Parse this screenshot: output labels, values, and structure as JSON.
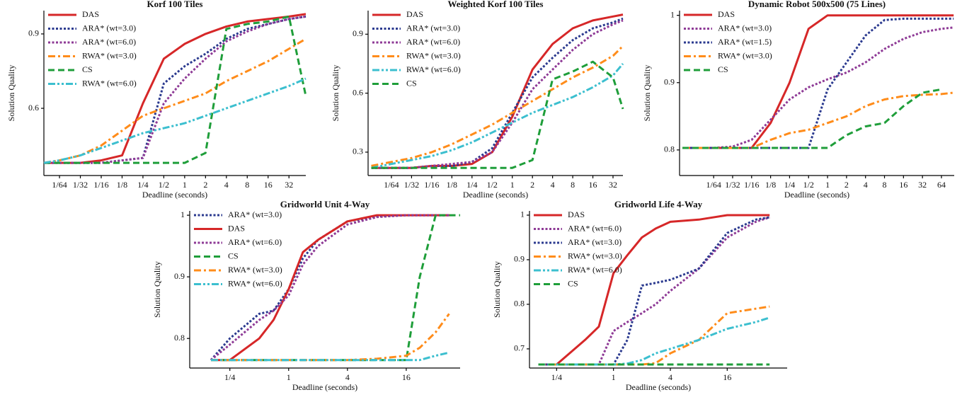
{
  "chart_data": [
    {
      "type": "line",
      "title": "Korf 100 Tiles",
      "x_label": "Deadline (seconds)",
      "y_label": "Solution Quality",
      "x_scale": "log",
      "legend": "upper left",
      "x": [
        0.0093,
        0.015625,
        0.03125,
        0.0625,
        0.125,
        0.25,
        0.5,
        1,
        2,
        4,
        8,
        16,
        32,
        56
      ],
      "xlim": [
        0.0093,
        56
      ],
      "ylim": [
        0.329,
        0.994
      ],
      "xticks": [
        {
          "value": 0.015625,
          "label": "1/64"
        },
        {
          "value": 0.03125,
          "label": "1/32"
        },
        {
          "value": 0.0625,
          "label": "1/16"
        },
        {
          "value": 0.125,
          "label": "1/8"
        },
        {
          "value": 0.25,
          "label": "1/4"
        },
        {
          "value": 0.5,
          "label": "1/2"
        },
        1,
        2,
        4,
        8,
        16,
        32
      ],
      "yticks": [
        0.6,
        0.9
      ],
      "series": [
        {
          "name": "DAS",
          "color": "#d62728",
          "style": "solid",
          "values": [
            0.38,
            0.38,
            0.38,
            0.39,
            0.41,
            0.62,
            0.8,
            0.86,
            0.9,
            0.93,
            0.95,
            0.96,
            0.97,
            0.98
          ]
        },
        {
          "name": "ARA* (wt=3.0)",
          "color": "#2b3a8f",
          "style": "dotted",
          "values": [
            0.38,
            0.38,
            0.38,
            0.38,
            0.39,
            0.4,
            0.7,
            0.77,
            0.82,
            0.88,
            0.92,
            0.94,
            0.96,
            0.97
          ]
        },
        {
          "name": "ARA* (wt=6.0)",
          "color": "#8e3a96",
          "style": "dotted",
          "values": [
            0.38,
            0.38,
            0.38,
            0.38,
            0.39,
            0.4,
            0.62,
            0.72,
            0.8,
            0.87,
            0.91,
            0.94,
            0.96,
            0.97
          ]
        },
        {
          "name": "RWA* (wt=3.0)",
          "color": "#ff8c1a",
          "style": "dashdot",
          "values": [
            0.38,
            0.39,
            0.41,
            0.45,
            0.51,
            0.57,
            0.6,
            0.63,
            0.66,
            0.71,
            0.75,
            0.79,
            0.84,
            0.88
          ]
        },
        {
          "name": "CS",
          "color": "#1f9e3a",
          "style": "dashed",
          "values": [
            0.38,
            0.38,
            0.38,
            0.38,
            0.38,
            0.38,
            0.38,
            0.38,
            0.42,
            0.92,
            0.94,
            0.95,
            0.97,
            0.65
          ]
        },
        {
          "name": "RWA* (wt=6.0)",
          "color": "#3cbfcf",
          "style": "dashdotdot",
          "values": [
            0.38,
            0.39,
            0.41,
            0.44,
            0.47,
            0.5,
            0.52,
            0.54,
            0.57,
            0.6,
            0.63,
            0.66,
            0.69,
            0.72
          ]
        }
      ]
    },
    {
      "type": "line",
      "title": "Weighted Korf 100 Tiles",
      "x_label": "Deadline (seconds)",
      "y_label": "Solution Quality",
      "x_scale": "log",
      "legend": "upper left",
      "x": [
        0.0078125,
        0.015625,
        0.03125,
        0.0625,
        0.125,
        0.25,
        0.5,
        1,
        2,
        4,
        8,
        16,
        32,
        45
      ],
      "xlim": [
        0.007,
        45
      ],
      "ylim": [
        0.181,
        1.02
      ],
      "xticks": [
        {
          "value": 0.015625,
          "label": "1/64"
        },
        {
          "value": 0.03125,
          "label": "1/32"
        },
        {
          "value": 0.0625,
          "label": "1/16"
        },
        {
          "value": 0.125,
          "label": "1/8"
        },
        {
          "value": 0.25,
          "label": "1/4"
        },
        {
          "value": 0.5,
          "label": "1/2"
        },
        1,
        2,
        4,
        8,
        16,
        32
      ],
      "yticks": [
        0.3,
        0.6,
        0.9
      ],
      "series": [
        {
          "name": "DAS",
          "color": "#d62728",
          "style": "solid",
          "values": [
            0.22,
            0.22,
            0.22,
            0.23,
            0.23,
            0.24,
            0.3,
            0.48,
            0.72,
            0.85,
            0.93,
            0.97,
            0.99,
            1.0
          ]
        },
        {
          "name": "ARA* (wt=3.0)",
          "color": "#2b3a8f",
          "style": "dotted",
          "values": [
            0.22,
            0.22,
            0.22,
            0.23,
            0.23,
            0.25,
            0.32,
            0.5,
            0.68,
            0.78,
            0.87,
            0.93,
            0.96,
            0.98
          ]
        },
        {
          "name": "ARA* (wt=6.0)",
          "color": "#8e3a96",
          "style": "dotted",
          "values": [
            0.22,
            0.22,
            0.22,
            0.23,
            0.24,
            0.25,
            0.3,
            0.45,
            0.62,
            0.72,
            0.82,
            0.9,
            0.95,
            0.97
          ]
        },
        {
          "name": "RWA* (wt=3.0)",
          "color": "#ff8c1a",
          "style": "dashdot",
          "values": [
            0.23,
            0.25,
            0.27,
            0.3,
            0.34,
            0.39,
            0.44,
            0.5,
            0.56,
            0.62,
            0.68,
            0.73,
            0.79,
            0.84
          ]
        },
        {
          "name": "RWA* (wt=6.0)",
          "color": "#3cbfcf",
          "style": "dashdotdot",
          "values": [
            0.22,
            0.24,
            0.26,
            0.28,
            0.31,
            0.35,
            0.4,
            0.45,
            0.5,
            0.54,
            0.58,
            0.63,
            0.69,
            0.75
          ]
        },
        {
          "name": "CS",
          "color": "#1f9e3a",
          "style": "dashed",
          "values": [
            0.22,
            0.22,
            0.22,
            0.22,
            0.22,
            0.22,
            0.22,
            0.22,
            0.26,
            0.67,
            0.71,
            0.76,
            0.68,
            0.52
          ]
        }
      ]
    },
    {
      "type": "line",
      "title": "Dynamic Robot 500x500 (75 Lines)",
      "x_label": "Deadline (seconds)",
      "y_label": "Solution Quality",
      "x_scale": "log",
      "legend": "upper left",
      "x": [
        0.005,
        0.015625,
        0.03125,
        0.0625,
        0.125,
        0.25,
        0.5,
        1,
        2,
        4,
        8,
        16,
        32,
        64,
        100
      ],
      "xlim": [
        0.0045,
        102
      ],
      "ylim": [
        0.762,
        1.007
      ],
      "xticks": [
        {
          "value": 0.015625,
          "label": "1/64"
        },
        {
          "value": 0.03125,
          "label": "1/32"
        },
        {
          "value": 0.0625,
          "label": "1/16"
        },
        {
          "value": 0.125,
          "label": "1/8"
        },
        {
          "value": 0.25,
          "label": "1/4"
        },
        {
          "value": 0.5,
          "label": "1/2"
        },
        1,
        2,
        4,
        8,
        16,
        32,
        64
      ],
      "yticks": [
        0.8,
        0.9,
        1
      ],
      "series": [
        {
          "name": "DAS",
          "color": "#d62728",
          "style": "solid",
          "values": [
            0.803,
            0.803,
            0.803,
            0.803,
            0.84,
            0.9,
            0.98,
            1.0,
            1.0,
            1.0,
            1.0,
            1.0,
            1.0,
            1.0,
            1.0
          ]
        },
        {
          "name": "ARA* (wt=3.0)",
          "color": "#8e3a96",
          "style": "dotted",
          "values": [
            0.803,
            0.803,
            0.805,
            0.815,
            0.845,
            0.875,
            0.893,
            0.905,
            0.915,
            0.93,
            0.95,
            0.965,
            0.975,
            0.98,
            0.982
          ]
        },
        {
          "name": "ARA* (wt=1.5)",
          "color": "#2b3a8f",
          "style": "dotted",
          "values": [
            0.803,
            0.803,
            0.803,
            0.803,
            0.803,
            0.803,
            0.803,
            0.89,
            0.93,
            0.97,
            0.993,
            0.995,
            0.995,
            0.995,
            0.995
          ]
        },
        {
          "name": "RWA* (wt=3.0)",
          "color": "#ff8c1a",
          "style": "dashdot",
          "values": [
            0.803,
            0.803,
            0.803,
            0.803,
            0.815,
            0.825,
            0.83,
            0.84,
            0.85,
            0.865,
            0.875,
            0.88,
            0.882,
            0.883,
            0.885
          ]
        },
        {
          "name": "CS",
          "color": "#1f9e3a",
          "style": "dashed",
          "values": [
            0.803,
            0.803,
            0.803,
            0.803,
            0.803,
            0.803,
            0.803,
            0.803,
            0.822,
            0.835,
            0.84,
            0.865,
            0.885,
            0.89,
            null
          ]
        }
      ]
    },
    {
      "type": "line",
      "title": "Gridworld Unit 4-Way",
      "x_label": "Deadline (seconds)",
      "y_label": "Solution Quality",
      "x_scale": "log",
      "legend": "upper left",
      "x": [
        0.16,
        0.25,
        0.5,
        0.7,
        1,
        1.4,
        2,
        4,
        8,
        16,
        22,
        32,
        44,
        57
      ],
      "xlim": [
        0.097,
        57
      ],
      "ylim": [
        0.752,
        1.007
      ],
      "xticks": [
        {
          "value": 0.25,
          "label": "1/4"
        },
        1,
        4,
        16
      ],
      "yticks": [
        0.8,
        0.9,
        1
      ],
      "series": [
        {
          "name": "ARA* (wt=3.0)",
          "color": "#2b3a8f",
          "style": "dotted",
          "values": [
            0.765,
            0.8,
            0.84,
            0.845,
            0.88,
            0.93,
            0.96,
            0.99,
            0.998,
            1.0,
            1.0,
            1.0,
            1.0,
            null
          ]
        },
        {
          "name": "DAS",
          "color": "#d62728",
          "style": "solid",
          "values": [
            0.765,
            0.765,
            0.8,
            0.83,
            0.88,
            0.94,
            0.96,
            0.99,
            1.0,
            1.0,
            1.0,
            1.0,
            1.0,
            null
          ]
        },
        {
          "name": "ARA* (wt=6.0)",
          "color": "#8e3a96",
          "style": "dotted",
          "values": [
            0.765,
            0.79,
            0.83,
            0.845,
            0.87,
            0.92,
            0.95,
            0.985,
            0.997,
            1.0,
            1.0,
            1.0,
            1.0,
            null
          ]
        },
        {
          "name": "CS",
          "color": "#1f9e3a",
          "style": "dashed",
          "values": [
            0.765,
            0.765,
            0.765,
            0.765,
            0.765,
            0.765,
            0.765,
            0.765,
            0.765,
            0.765,
            0.9,
            1.0,
            1.0,
            1.0
          ]
        },
        {
          "name": "RWA* (wt=3.0)",
          "color": "#ff8c1a",
          "style": "dashdot",
          "values": [
            0.765,
            0.765,
            0.765,
            0.765,
            0.765,
            0.765,
            0.765,
            0.765,
            0.767,
            0.772,
            0.785,
            0.81,
            0.84,
            null
          ]
        },
        {
          "name": "RWA* (wt=6.0)",
          "color": "#3cbfcf",
          "style": "dashdotdot",
          "values": [
            0.765,
            0.765,
            0.765,
            0.765,
            0.765,
            0.765,
            0.765,
            0.765,
            0.765,
            0.765,
            0.765,
            0.772,
            0.777,
            null
          ]
        }
      ]
    },
    {
      "type": "line",
      "title": "Gridworld Life 4-Way",
      "x_label": "Deadline (seconds)",
      "y_label": "Solution Quality",
      "x_scale": "log",
      "legend": "upper left",
      "x": [
        0.16,
        0.25,
        0.5,
        0.7,
        1,
        1.4,
        2,
        2.8,
        4,
        8,
        16,
        32,
        45
      ],
      "xlim": [
        0.129,
        69
      ],
      "ylim": [
        0.657,
        1.0095
      ],
      "xticks": [
        {
          "value": 0.25,
          "label": "1/4"
        },
        1,
        4,
        16
      ],
      "yticks": [
        0.7,
        0.8,
        0.9,
        1
      ],
      "series": [
        {
          "name": "DAS",
          "color": "#d62728",
          "style": "solid",
          "values": [
            0.665,
            0.665,
            0.72,
            0.75,
            0.87,
            0.91,
            0.95,
            0.97,
            0.985,
            0.99,
            1.0,
            1.0,
            1.0
          ]
        },
        {
          "name": "ARA* (wt=6.0)",
          "color": "#8e3a96",
          "style": "dotted",
          "values": [
            0.665,
            0.665,
            0.665,
            0.665,
            0.74,
            0.76,
            0.78,
            0.8,
            0.83,
            0.88,
            0.95,
            0.985,
            0.995
          ]
        },
        {
          "name": "ARA* (wt=3.0)",
          "color": "#2b3a8f",
          "style": "dotted",
          "values": [
            0.665,
            0.665,
            0.665,
            0.665,
            0.665,
            0.72,
            0.842,
            0.848,
            0.855,
            0.88,
            0.96,
            0.99,
            0.995
          ]
        },
        {
          "name": "RWA* (wt=3.0)",
          "color": "#ff8c1a",
          "style": "dashdot",
          "values": [
            0.665,
            0.665,
            0.665,
            0.665,
            0.665,
            0.665,
            0.665,
            0.668,
            0.69,
            0.72,
            0.78,
            0.79,
            0.795
          ]
        },
        {
          "name": "RWA* (wt=6.0)",
          "color": "#3cbfcf",
          "style": "dashdotdot",
          "values": [
            0.665,
            0.665,
            0.665,
            0.665,
            0.665,
            0.667,
            0.675,
            0.69,
            0.7,
            0.72,
            0.745,
            0.76,
            0.77
          ]
        },
        {
          "name": "CS",
          "color": "#1f9e3a",
          "style": "dashed",
          "values": [
            0.665,
            0.665,
            0.665,
            0.665,
            0.665,
            0.665,
            0.665,
            0.665,
            0.665,
            0.665,
            0.665,
            0.665,
            0.665
          ]
        }
      ]
    }
  ]
}
